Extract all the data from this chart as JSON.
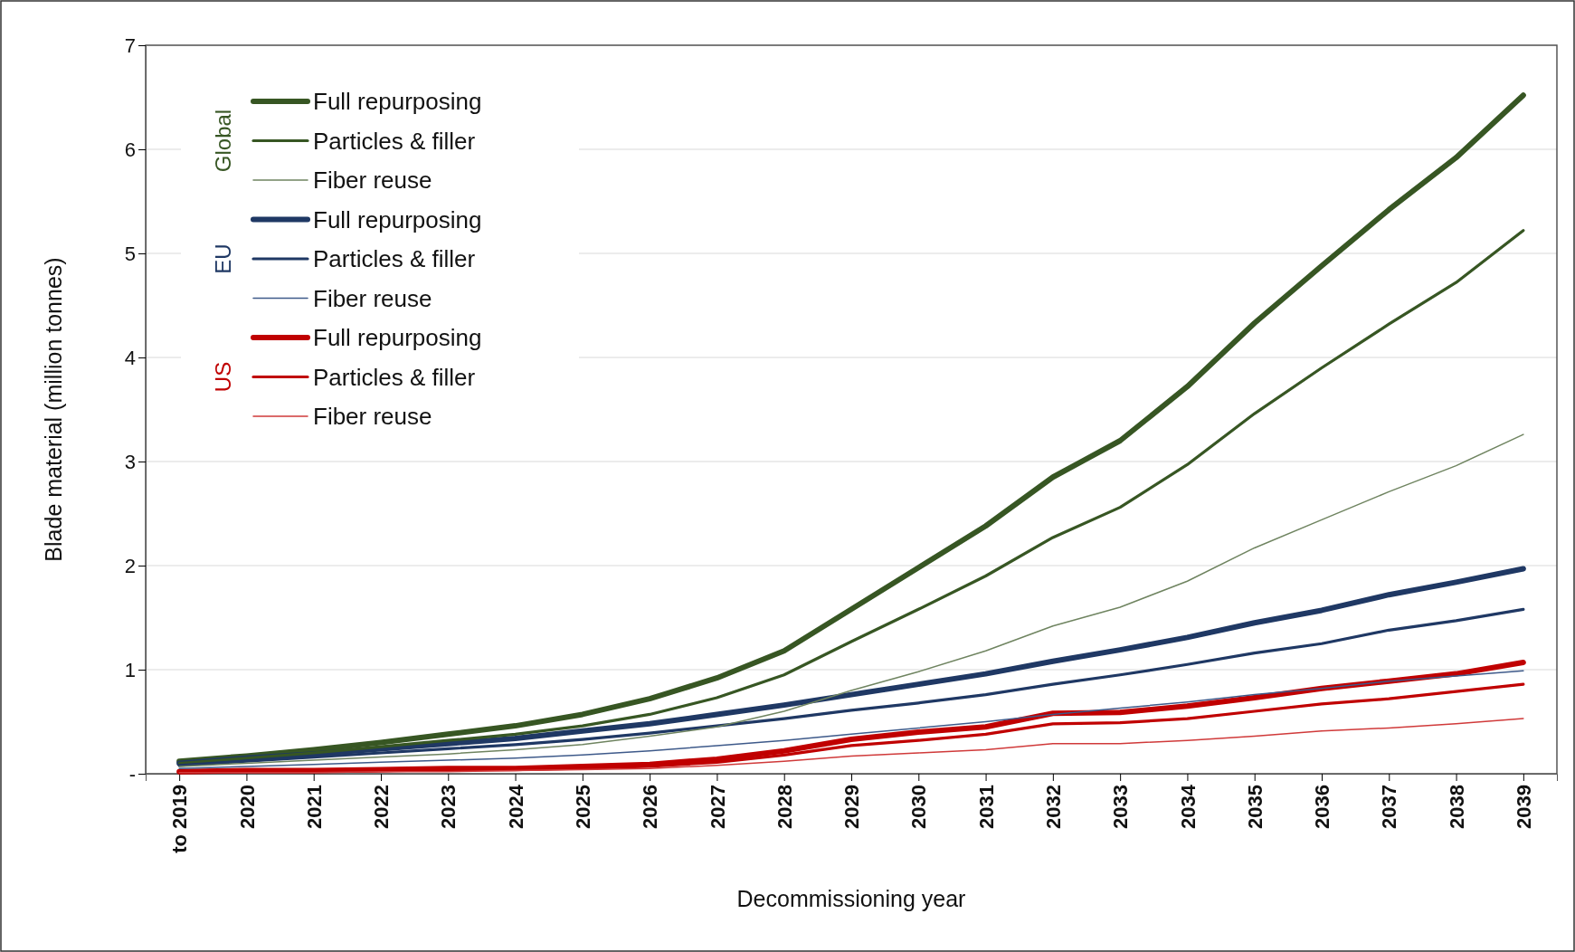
{
  "chart_data": {
    "type": "line",
    "xlabel": "Decommissioning year",
    "ylabel": "Blade material (million tonnes)",
    "categories": [
      "to 2019",
      "2020",
      "2021",
      "2022",
      "2023",
      "2024",
      "2025",
      "2026",
      "2027",
      "2028",
      "2029",
      "2030",
      "2031",
      "2032",
      "2033",
      "2034",
      "2035",
      "2036",
      "2037",
      "2038",
      "2039"
    ],
    "ylim": [
      0,
      7
    ],
    "yticks": [
      {
        "value": 0,
        "label": "-"
      },
      1,
      2,
      3,
      4,
      5,
      6,
      7
    ],
    "grid": "y",
    "legend": "top left",
    "annotations": [
      "Global",
      "EU",
      "US"
    ],
    "series": [
      {
        "name": "Full repurposing",
        "color": "#375623",
        "values": [
          0.12,
          0.17,
          0.23,
          0.3,
          0.38,
          0.46,
          0.57,
          0.72,
          0.92,
          1.18,
          1.58,
          1.98,
          2.38,
          2.85,
          3.2,
          3.72,
          4.33,
          4.88,
          5.42,
          5.92,
          6.52
        ]
      },
      {
        "name": "Particles & filler",
        "color": "#375623",
        "values": [
          0.1,
          0.15,
          0.2,
          0.26,
          0.32,
          0.38,
          0.46,
          0.57,
          0.73,
          0.95,
          1.27,
          1.58,
          1.9,
          2.27,
          2.56,
          2.97,
          3.46,
          3.9,
          4.32,
          4.72,
          5.22
        ]
      },
      {
        "name": "Fiber reuse",
        "color": "#6f8460",
        "values": [
          0.07,
          0.1,
          0.13,
          0.16,
          0.19,
          0.23,
          0.28,
          0.36,
          0.45,
          0.6,
          0.8,
          0.98,
          1.18,
          1.42,
          1.6,
          1.85,
          2.17,
          2.44,
          2.71,
          2.96,
          3.26
        ]
      },
      {
        "name": "Full repurposing",
        "color": "#1f3864",
        "values": [
          0.1,
          0.15,
          0.19,
          0.24,
          0.29,
          0.34,
          0.41,
          0.48,
          0.57,
          0.66,
          0.76,
          0.86,
          0.96,
          1.08,
          1.19,
          1.31,
          1.45,
          1.57,
          1.72,
          1.84,
          1.97
        ]
      },
      {
        "name": "Particles & filler",
        "color": "#1f3864",
        "values": [
          0.08,
          0.12,
          0.16,
          0.2,
          0.24,
          0.28,
          0.33,
          0.39,
          0.46,
          0.53,
          0.61,
          0.68,
          0.76,
          0.86,
          0.95,
          1.05,
          1.16,
          1.25,
          1.38,
          1.47,
          1.58
        ]
      },
      {
        "name": "Fiber reuse",
        "color": "#3e5a8a",
        "values": [
          0.05,
          0.07,
          0.09,
          0.11,
          0.13,
          0.15,
          0.18,
          0.22,
          0.27,
          0.32,
          0.38,
          0.44,
          0.5,
          0.57,
          0.63,
          0.69,
          0.76,
          0.82,
          0.89,
          0.94,
          0.99
        ]
      },
      {
        "name": "Full repurposing",
        "color": "#c00000",
        "values": [
          0.02,
          0.03,
          0.03,
          0.04,
          0.05,
          0.05,
          0.07,
          0.09,
          0.14,
          0.22,
          0.33,
          0.4,
          0.45,
          0.58,
          0.59,
          0.65,
          0.73,
          0.82,
          0.89,
          0.96,
          1.07
        ]
      },
      {
        "name": "Particles & filler",
        "color": "#c00000",
        "values": [
          0.01,
          0.02,
          0.02,
          0.03,
          0.04,
          0.04,
          0.05,
          0.07,
          0.11,
          0.18,
          0.27,
          0.32,
          0.38,
          0.48,
          0.49,
          0.53,
          0.6,
          0.67,
          0.72,
          0.79,
          0.86
        ]
      },
      {
        "name": "Fiber reuse",
        "color": "#d03a3a",
        "values": [
          0.01,
          0.01,
          0.01,
          0.02,
          0.02,
          0.03,
          0.04,
          0.05,
          0.08,
          0.12,
          0.17,
          0.2,
          0.23,
          0.29,
          0.29,
          0.32,
          0.36,
          0.41,
          0.44,
          0.48,
          0.53
        ]
      }
    ]
  }
}
